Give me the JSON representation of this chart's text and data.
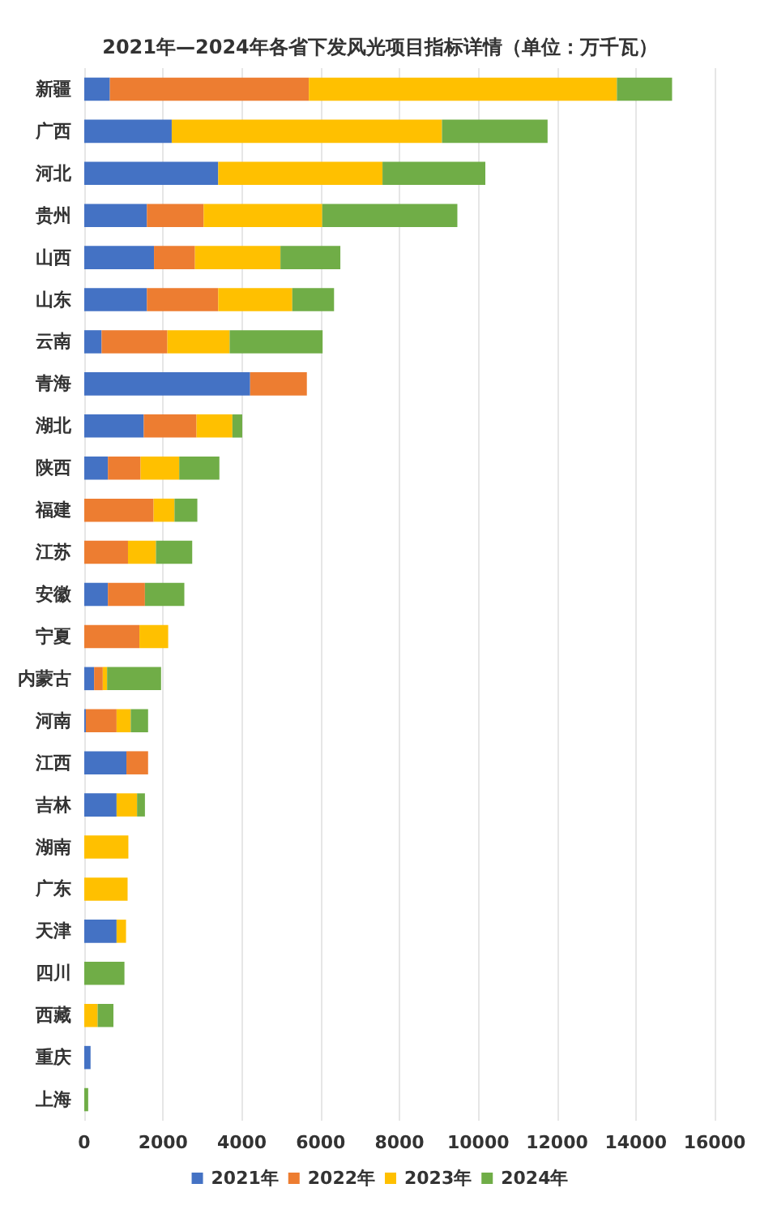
{
  "chart_data": {
    "type": "bar",
    "orientation": "horizontal",
    "stacked": true,
    "title": "2021年—2024年各省下发风光项目指标详情（单位：万千瓦）",
    "categories": [
      "新疆",
      "广西",
      "河北",
      "贵州",
      "山西",
      "山东",
      "云南",
      "青海",
      "湖北",
      "陕西",
      "福建",
      "江苏",
      "安徽",
      "宁夏",
      "内蒙古",
      "河南",
      "江西",
      "吉林",
      "湖南",
      "广东",
      "天津",
      "四川",
      "西藏",
      "重庆",
      "上海"
    ],
    "series": [
      {
        "name": "2021年",
        "color": "#4472c4",
        "values": [
          650,
          2220,
          3400,
          1590,
          1770,
          1590,
          440,
          4210,
          1510,
          600,
          0,
          0,
          600,
          0,
          250,
          40,
          1070,
          820,
          0,
          0,
          820,
          0,
          0,
          160,
          0
        ]
      },
      {
        "name": "2022年",
        "color": "#ed7d31",
        "values": [
          5050,
          0,
          0,
          1440,
          1040,
          1810,
          1670,
          1440,
          1340,
          830,
          1760,
          1110,
          940,
          1400,
          220,
          780,
          550,
          0,
          0,
          0,
          0,
          0,
          0,
          0,
          0
        ]
      },
      {
        "name": "2023年",
        "color": "#ffc000",
        "values": [
          7820,
          6860,
          4170,
          3010,
          2170,
          1880,
          1580,
          0,
          910,
          980,
          530,
          710,
          0,
          730,
          110,
          360,
          0,
          520,
          1120,
          1100,
          240,
          0,
          340,
          0,
          0
        ]
      },
      {
        "name": "2024年",
        "color": "#70ad47",
        "values": [
          1400,
          2680,
          2610,
          3430,
          1520,
          1060,
          2360,
          0,
          250,
          1020,
          580,
          920,
          1000,
          0,
          1370,
          440,
          0,
          200,
          0,
          0,
          0,
          1020,
          400,
          0,
          100
        ]
      }
    ],
    "xlim": [
      0,
      16000
    ],
    "xticks": [
      0,
      2000,
      4000,
      6000,
      8000,
      10000,
      12000,
      14000,
      16000
    ],
    "grid": "x",
    "legend": "bottom"
  }
}
